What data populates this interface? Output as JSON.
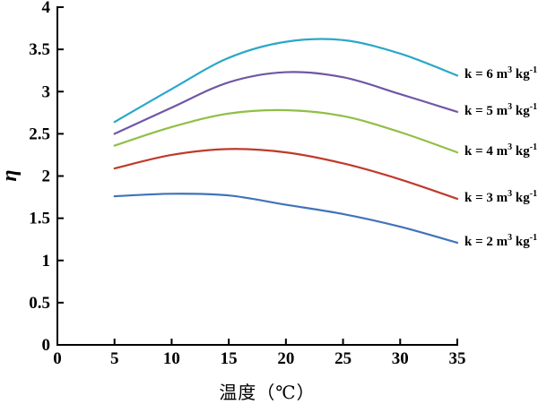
{
  "chart_data": {
    "type": "line",
    "title": "",
    "xlabel": "温度（℃）",
    "ylabel": "η",
    "xlim": [
      0,
      35
    ],
    "ylim": [
      0,
      4
    ],
    "x_ticks": [
      0,
      5,
      10,
      15,
      20,
      25,
      30,
      35
    ],
    "y_ticks": [
      0,
      0.5,
      1,
      1.5,
      2,
      2.5,
      3,
      3.5,
      4
    ],
    "grid": false,
    "legend_position": "right of curve ends, outside plot",
    "x": [
      5,
      10,
      15,
      20,
      25,
      30,
      35
    ],
    "series": [
      {
        "k": 6,
        "name": "k = 6 m³ kg⁻¹",
        "color": "#2BA7C9",
        "values": [
          2.64,
          3.03,
          3.4,
          3.59,
          3.61,
          3.45,
          3.19
        ],
        "label_parts": {
          "t1": "k = 6 m",
          "sup1": "3",
          "t2": " kg",
          "sup2": "-1"
        }
      },
      {
        "k": 5,
        "name": "k = 5 m³ kg⁻¹",
        "color": "#7156A6",
        "values": [
          2.5,
          2.81,
          3.11,
          3.23,
          3.17,
          2.97,
          2.76
        ],
        "label_parts": {
          "t1": "k = 5 m",
          "sup1": "3",
          "t2": " kg",
          "sup2": "-1"
        }
      },
      {
        "k": 4,
        "name": "k = 4 m³ kg⁻¹",
        "color": "#90BF46",
        "values": [
          2.36,
          2.58,
          2.74,
          2.78,
          2.71,
          2.52,
          2.28
        ],
        "label_parts": {
          "t1": "k = 4 m",
          "sup1": "3",
          "t2": " kg",
          "sup2": "-1"
        }
      },
      {
        "k": 3,
        "name": "k = 3 m³ kg⁻¹",
        "color": "#BF3A2B",
        "values": [
          2.09,
          2.25,
          2.32,
          2.28,
          2.15,
          1.96,
          1.73
        ],
        "label_parts": {
          "t1": "k = 3 m",
          "sup1": "3",
          "t2": " kg",
          "sup2": "-1"
        }
      },
      {
        "k": 2,
        "name": "k = 2 m³ kg⁻¹",
        "color": "#4173B8",
        "values": [
          1.76,
          1.79,
          1.77,
          1.66,
          1.55,
          1.4,
          1.21
        ],
        "label_parts": {
          "t1": "k = 2 m",
          "sup1": "3",
          "t2": " kg",
          "sup2": "-1"
        }
      }
    ]
  },
  "colors": {
    "axis": "#000000",
    "background": "#FFFFFF",
    "text": "#000000"
  }
}
